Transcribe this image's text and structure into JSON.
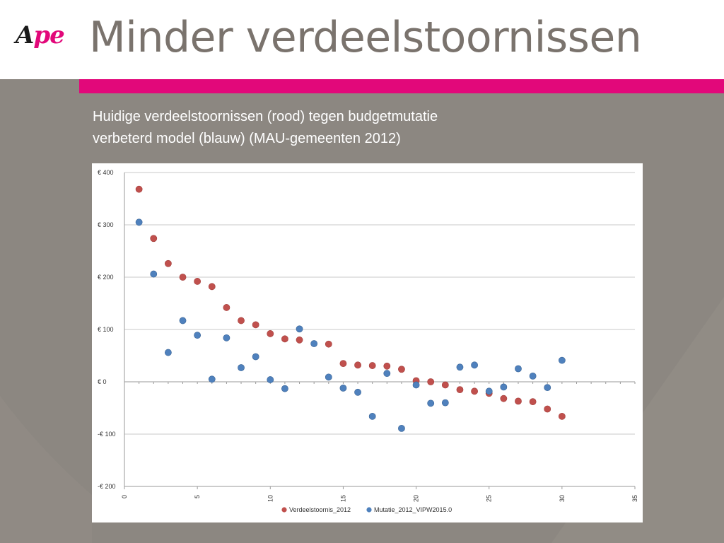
{
  "slide": {
    "logo_a": "A",
    "logo_pe": "pe",
    "title": "Minder verdeelstoornissen",
    "subtitle_line1": "Huidige verdeelstoornissen (rood) tegen budgetmutatie",
    "subtitle_line2": "verbeterd model (blauw) (MAU-gemeenten 2012)"
  },
  "colors": {
    "accent": "#e2087a",
    "series_red": "#c0504d",
    "series_blue": "#4f81bd"
  },
  "chart_data": {
    "type": "scatter",
    "title": "",
    "xlabel": "",
    "ylabel": "",
    "xlim": [
      0,
      35
    ],
    "ylim": [
      -200,
      400
    ],
    "x_ticks": [
      0,
      5,
      10,
      15,
      20,
      25,
      30,
      35
    ],
    "x_tick_labels": [
      "0",
      "5",
      "10",
      "15",
      "20",
      "25",
      "30",
      "35"
    ],
    "y_ticks": [
      -200,
      -100,
      0,
      100,
      200,
      300,
      400
    ],
    "y_tick_labels": [
      "-€ 200",
      "-€ 100",
      "€ 0",
      "€ 100",
      "€ 200",
      "€ 300",
      "€ 400"
    ],
    "grid": "horizontal",
    "legend_position": "bottom",
    "series": [
      {
        "name": "Verdeelstoornis_2012",
        "color": "#c0504d",
        "x": [
          1,
          2,
          3,
          4,
          5,
          6,
          7,
          8,
          9,
          10,
          11,
          12,
          13,
          14,
          15,
          16,
          17,
          18,
          19,
          20,
          21,
          22,
          23,
          24,
          25,
          26,
          27,
          28,
          29,
          30
        ],
        "y": [
          368,
          274,
          226,
          200,
          192,
          182,
          142,
          117,
          109,
          92,
          82,
          80,
          null,
          72,
          35,
          32,
          31,
          30,
          24,
          2,
          0,
          -6,
          -15,
          -18,
          -22,
          -32,
          -37,
          -38,
          -52,
          -66
        ]
      },
      {
        "name": "Mutatie_2012_VIPW2015.0",
        "color": "#4f81bd",
        "x": [
          1,
          2,
          3,
          4,
          5,
          6,
          7,
          8,
          9,
          10,
          11,
          12,
          13,
          14,
          15,
          16,
          17,
          18,
          19,
          20,
          21,
          22,
          23,
          24,
          25,
          26,
          27,
          28,
          29,
          30
        ],
        "y": [
          305,
          206,
          56,
          117,
          89,
          5,
          84,
          27,
          48,
          4,
          -13,
          101,
          73,
          9,
          -12,
          -20,
          -66,
          16,
          -89,
          -6,
          -41,
          -40,
          28,
          32,
          -18,
          -10,
          25,
          11,
          -11,
          41
        ]
      }
    ]
  }
}
